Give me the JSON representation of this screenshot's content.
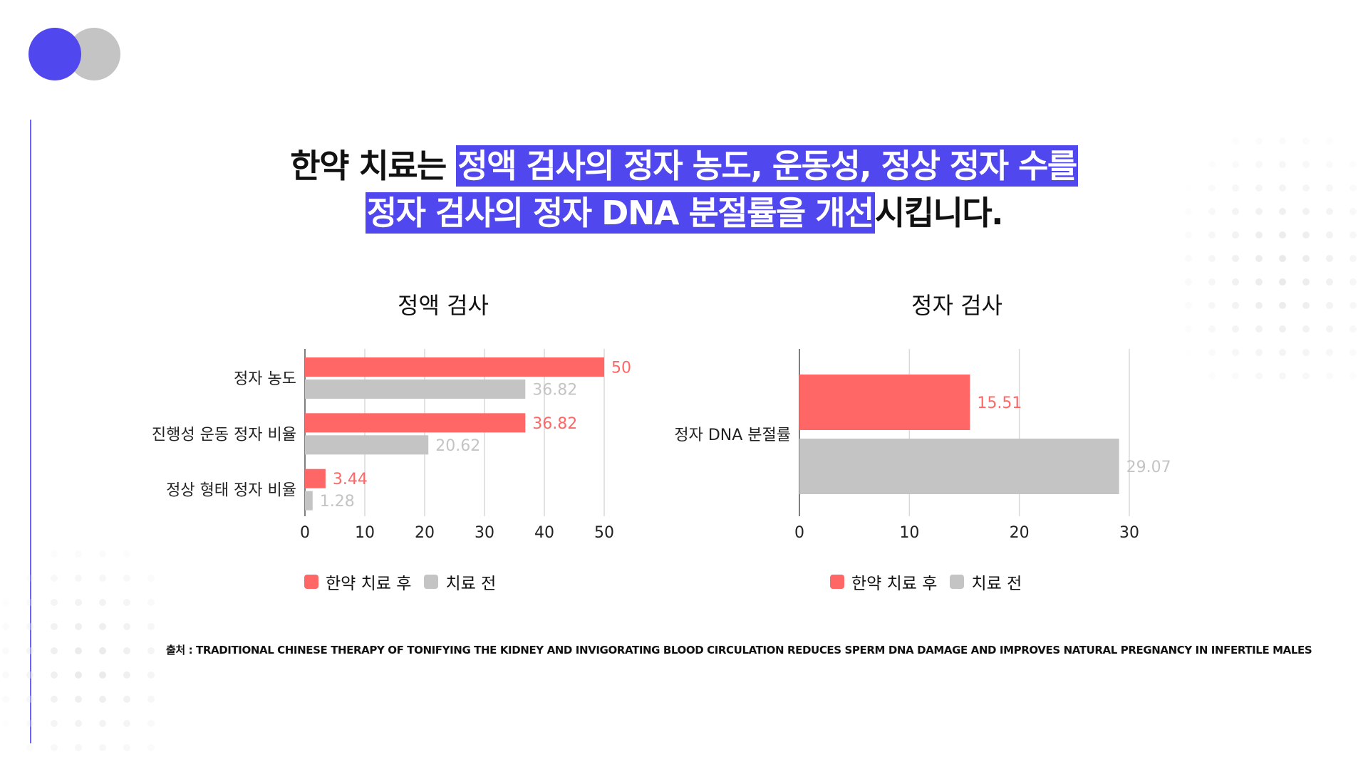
{
  "colors": {
    "accent": "#5147ee",
    "after": "#ff6666",
    "before": "#c4c4c4",
    "dot": "#e8e8e8"
  },
  "headline": {
    "line1_plain": "한약 치료는 ",
    "line1_highlight": "정액 검사의 정자 농도, 운동성, 정상 정자 수를",
    "line2_highlight": "정자 검사의 정자 DNA 분절률을 개선",
    "line2_plain": "시킵니다."
  },
  "legend": {
    "after": "한약 치료 후",
    "before": "치료 전"
  },
  "source": "출처 : TRADITIONAL CHINESE THERAPY OF TONIFYING THE KIDNEY AND INVIGORATING BLOOD CIRCULATION REDUCES SPERM DNA DAMAGE AND IMPROVES NATURAL PREGNANCY IN INFERTILE MALES",
  "chart_data": [
    {
      "type": "bar",
      "orientation": "horizontal",
      "title": "정액 검사",
      "categories": [
        "정자 농도",
        "진행성 운동 정자 비율",
        "정상 형태 정자 비율"
      ],
      "series": [
        {
          "name": "한약 치료 후",
          "values": [
            50,
            36.82,
            3.44
          ],
          "labels": [
            "50",
            "36.82",
            "3.44"
          ]
        },
        {
          "name": "치료 전",
          "values": [
            36.82,
            20.62,
            1.28
          ],
          "labels": [
            "36.82",
            "20.62",
            "1.28"
          ]
        }
      ],
      "xlim": [
        0,
        50
      ],
      "xticks": [
        "0",
        "10",
        "20",
        "30",
        "40",
        "50"
      ],
      "grid": true,
      "legend": "bottom"
    },
    {
      "type": "bar",
      "orientation": "horizontal",
      "title": "정자 검사",
      "categories": [
        "정자 DNA 분절률"
      ],
      "series": [
        {
          "name": "한약 치료 후",
          "values": [
            15.51
          ],
          "labels": [
            "15.51"
          ]
        },
        {
          "name": "치료 전",
          "values": [
            29.07
          ],
          "labels": [
            "29.07"
          ]
        }
      ],
      "xlim": [
        0,
        30
      ],
      "xticks": [
        "0",
        "10",
        "20",
        "30"
      ],
      "grid": true,
      "legend": "bottom"
    }
  ]
}
